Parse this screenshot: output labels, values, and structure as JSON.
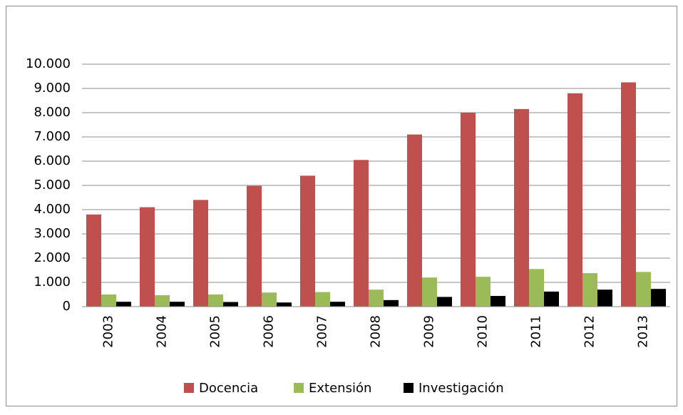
{
  "chart_data": {
    "type": "bar",
    "categories": [
      "2003",
      "2004",
      "2005",
      "2006",
      "2007",
      "2008",
      "2009",
      "2010",
      "2011",
      "2012",
      "2013"
    ],
    "series": [
      {
        "name": "Docencia",
        "color": "#c0504d",
        "values": [
          3800,
          4100,
          4400,
          4980,
          5400,
          6050,
          7100,
          8000,
          8150,
          8800,
          9250
        ]
      },
      {
        "name": "Extensión",
        "color": "#9bbb59",
        "values": [
          500,
          470,
          500,
          580,
          600,
          700,
          1200,
          1230,
          1550,
          1380,
          1430
        ]
      },
      {
        "name": "Investigación",
        "color": "#000000",
        "values": [
          200,
          200,
          190,
          170,
          200,
          270,
          400,
          440,
          620,
          700,
          730
        ]
      }
    ],
    "ylim": [
      0,
      10000
    ],
    "yticks": [
      0,
      {
        "value": 1000,
        "label": "1.000"
      },
      {
        "value": 2000,
        "label": "2.000"
      },
      {
        "value": 3000,
        "label": "3.000"
      },
      {
        "value": 4000,
        "label": "4.000"
      },
      {
        "value": 5000,
        "label": "5.000"
      },
      {
        "value": 6000,
        "label": "6.000"
      },
      {
        "value": 7000,
        "label": "7.000"
      },
      {
        "value": 8000,
        "label": "8.000"
      },
      {
        "value": 9000,
        "label": "9.000"
      },
      {
        "value": 10000,
        "label": "10.000"
      }
    ],
    "grid": true,
    "legend": "bottom"
  }
}
